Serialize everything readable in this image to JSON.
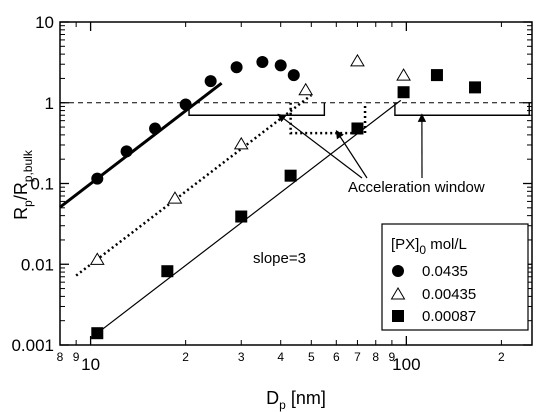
{
  "chart_data": {
    "type": "scatter",
    "xscale": "log",
    "yscale": "log",
    "xlim": [
      8,
      250
    ],
    "ylim": [
      0.001,
      10
    ],
    "grid": false,
    "legend_position": "bottom-right",
    "x_major_ticks": [
      {
        "value": 10,
        "label": "10"
      },
      {
        "value": 100,
        "label": "100"
      }
    ],
    "x_minor_ticks": [
      {
        "value": 8,
        "label": "8"
      },
      {
        "value": 9,
        "label": "9"
      },
      {
        "value": 20,
        "label": "2"
      },
      {
        "value": 30,
        "label": "3"
      },
      {
        "value": 40,
        "label": "4"
      },
      {
        "value": 50,
        "label": "5"
      },
      {
        "value": 60,
        "label": "6"
      },
      {
        "value": 70,
        "label": "7"
      },
      {
        "value": 80,
        "label": "8"
      },
      {
        "value": 90,
        "label": "9"
      },
      {
        "value": 200,
        "label": "2"
      }
    ],
    "y_ticks": [
      {
        "value": 0.001,
        "label": "0.001"
      },
      {
        "value": 0.01,
        "label": "0.01"
      },
      {
        "value": 0.1,
        "label": "0.1"
      },
      {
        "value": 1,
        "label": "1"
      },
      {
        "value": 10,
        "label": "10"
      }
    ],
    "xlabel": {
      "main": "D",
      "sub": "p",
      "rest": " [nm]"
    },
    "ylabel": {
      "main": "R",
      "sub1": "p",
      "mid": "/R",
      "sub2": "p,bulk"
    },
    "reference_line": {
      "y": 1,
      "style": "dashed"
    },
    "series": [
      {
        "name": "0.0435",
        "marker": "circle",
        "points": [
          [
            10.5,
            0.115
          ],
          [
            13,
            0.25
          ],
          [
            16,
            0.48
          ],
          [
            20,
            0.95
          ],
          [
            24,
            1.85
          ],
          [
            29,
            2.75
          ],
          [
            35,
            3.2
          ],
          [
            40,
            2.9
          ],
          [
            44,
            2.2
          ]
        ],
        "fit_line": {
          "style": "bold",
          "x": [
            8,
            26
          ]
        }
      },
      {
        "name": "0.00435",
        "marker": "triangle",
        "points": [
          [
            10.5,
            0.0115
          ],
          [
            18.5,
            0.066
          ],
          [
            30,
            0.31
          ],
          [
            48,
            1.45
          ],
          [
            70,
            3.3
          ],
          [
            98,
            2.2
          ]
        ],
        "fit_line": {
          "style": "dotted",
          "x": [
            9,
            50
          ]
        }
      },
      {
        "name": "0.00087",
        "marker": "square",
        "points": [
          [
            10.5,
            0.0014
          ],
          [
            17.5,
            0.0082
          ],
          [
            30,
            0.039
          ],
          [
            43,
            0.125
          ],
          [
            70,
            0.48
          ],
          [
            98,
            1.35
          ],
          [
            125,
            2.2
          ],
          [
            165,
            1.55
          ]
        ],
        "fit_line": {
          "style": "thin",
          "x": [
            10,
            96
          ]
        }
      }
    ],
    "legend": {
      "title": {
        "main": "[PX]",
        "sub": "0",
        "rest": " mol/L"
      },
      "entries": [
        "0.0435",
        "0.00435",
        "0.00087"
      ]
    },
    "annotations": {
      "slope_label": "slope=3",
      "acceleration_label": "Acceleration window",
      "windows": [
        {
          "x_start": 20.5,
          "x_end": 55,
          "style": "solid"
        },
        {
          "x_start": 43,
          "x_end": 74,
          "style": "dotted"
        },
        {
          "x_start": 92,
          "x_end": 245,
          "style": "solid"
        }
      ]
    }
  }
}
